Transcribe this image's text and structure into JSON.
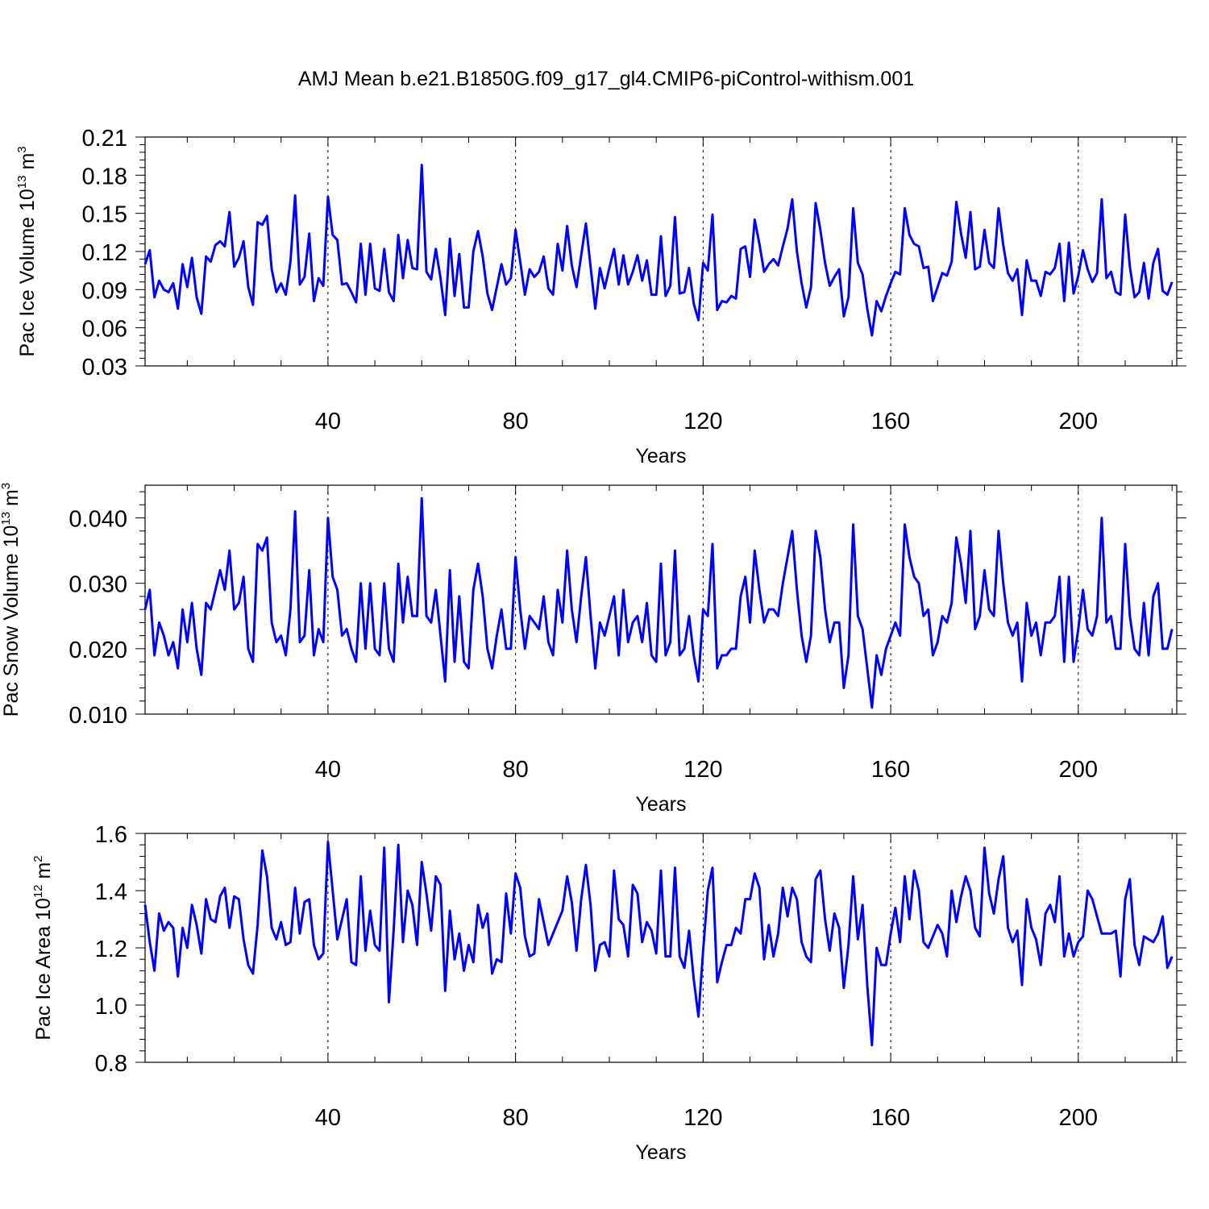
{
  "title": "AMJ Mean b.e21.B1850G.f09_g17_gl4.CMIP6-piControl-withism.001",
  "line_color": "#0000ff",
  "chart_data": [
    {
      "type": "line",
      "title": "AMJ Mean b.e21.B1850G.f09_g17_gl4.CMIP6-piControl-withism.001",
      "xlabel": "Years",
      "ylabel": "Pac Ice Volume 10",
      "ylabel_sup": "13",
      "ylabel_unit": " m",
      "ylabel_unit_sup": "3",
      "xlim": [
        1,
        221
      ],
      "ylim": [
        0.03,
        0.21
      ],
      "xticks": [
        40,
        80,
        120,
        160,
        200
      ],
      "xtick_labels": [
        "40",
        "80",
        "120",
        "160",
        "200"
      ],
      "yticks": [
        0.03,
        0.06,
        0.09,
        0.12,
        0.15,
        0.18,
        0.21
      ],
      "ytick_labels": [
        "0.03",
        "0.06",
        "0.09",
        "0.12",
        "0.15",
        "0.18",
        "0.21"
      ],
      "grid": "vertical dashed at major x ticks",
      "x_start": 1,
      "values": [
        0.11,
        0.121,
        0.084,
        0.097,
        0.09,
        0.088,
        0.095,
        0.075,
        0.11,
        0.092,
        0.115,
        0.084,
        0.071,
        0.116,
        0.112,
        0.125,
        0.128,
        0.124,
        0.151,
        0.108,
        0.115,
        0.128,
        0.092,
        0.078,
        0.143,
        0.141,
        0.148,
        0.106,
        0.088,
        0.095,
        0.086,
        0.112,
        0.164,
        0.094,
        0.1,
        0.134,
        0.081,
        0.099,
        0.093,
        0.163,
        0.133,
        0.129,
        0.094,
        0.095,
        0.088,
        0.08,
        0.126,
        0.086,
        0.126,
        0.091,
        0.089,
        0.122,
        0.088,
        0.081,
        0.133,
        0.099,
        0.129,
        0.107,
        0.106,
        0.188,
        0.104,
        0.098,
        0.122,
        0.099,
        0.07,
        0.13,
        0.085,
        0.118,
        0.076,
        0.076,
        0.12,
        0.136,
        0.116,
        0.087,
        0.074,
        0.092,
        0.11,
        0.094,
        0.099,
        0.137,
        0.112,
        0.086,
        0.106,
        0.1,
        0.104,
        0.116,
        0.091,
        0.086,
        0.126,
        0.105,
        0.14,
        0.109,
        0.092,
        0.117,
        0.142,
        0.108,
        0.075,
        0.107,
        0.091,
        0.107,
        0.122,
        0.094,
        0.117,
        0.094,
        0.104,
        0.117,
        0.097,
        0.113,
        0.086,
        0.086,
        0.132,
        0.085,
        0.093,
        0.147,
        0.087,
        0.088,
        0.107,
        0.079,
        0.066,
        0.111,
        0.105,
        0.149,
        0.074,
        0.081,
        0.08,
        0.085,
        0.083,
        0.122,
        0.124,
        0.1,
        0.145,
        0.126,
        0.104,
        0.11,
        0.114,
        0.109,
        0.124,
        0.138,
        0.161,
        0.12,
        0.095,
        0.076,
        0.092,
        0.158,
        0.137,
        0.111,
        0.093,
        0.1,
        0.106,
        0.069,
        0.084,
        0.154,
        0.111,
        0.102,
        0.075,
        0.054,
        0.081,
        0.073,
        0.085,
        0.095,
        0.104,
        0.102,
        0.154,
        0.133,
        0.126,
        0.124,
        0.107,
        0.108,
        0.081,
        0.092,
        0.103,
        0.101,
        0.112,
        0.159,
        0.134,
        0.115,
        0.151,
        0.106,
        0.108,
        0.137,
        0.111,
        0.107,
        0.154,
        0.125,
        0.103,
        0.097,
        0.106,
        0.07,
        0.113,
        0.097,
        0.097,
        0.085,
        0.104,
        0.102,
        0.107,
        0.126,
        0.081,
        0.127,
        0.087,
        0.101,
        0.121,
        0.106,
        0.096,
        0.103,
        0.161,
        0.099,
        0.104,
        0.088,
        0.086,
        0.149,
        0.108,
        0.084,
        0.088,
        0.111,
        0.083,
        0.111,
        0.122,
        0.089,
        0.086,
        0.096
      ]
    },
    {
      "type": "line",
      "xlabel": "Years",
      "ylabel": "Pac Snow Volume 10",
      "ylabel_sup": "13",
      "ylabel_unit": " m",
      "ylabel_unit_sup": "3",
      "xlim": [
        1,
        221
      ],
      "ylim": [
        0.01,
        0.045
      ],
      "xticks": [
        40,
        80,
        120,
        160,
        200
      ],
      "xtick_labels": [
        "40",
        "80",
        "120",
        "160",
        "200"
      ],
      "yticks": [
        0.01,
        0.02,
        0.03,
        0.04
      ],
      "ytick_labels": [
        "0.010",
        "0.020",
        "0.030",
        "0.040"
      ],
      "grid": "vertical dashed at major x ticks",
      "x_start": 1,
      "values": [
        0.026,
        0.029,
        0.019,
        0.024,
        0.022,
        0.019,
        0.021,
        0.017,
        0.026,
        0.021,
        0.027,
        0.02,
        0.016,
        0.027,
        0.026,
        0.029,
        0.032,
        0.029,
        0.035,
        0.026,
        0.027,
        0.031,
        0.02,
        0.018,
        0.036,
        0.035,
        0.037,
        0.024,
        0.021,
        0.022,
        0.019,
        0.026,
        0.041,
        0.021,
        0.022,
        0.032,
        0.019,
        0.023,
        0.021,
        0.04,
        0.031,
        0.029,
        0.022,
        0.023,
        0.02,
        0.018,
        0.03,
        0.02,
        0.03,
        0.02,
        0.019,
        0.03,
        0.02,
        0.018,
        0.033,
        0.024,
        0.031,
        0.025,
        0.025,
        0.043,
        0.025,
        0.024,
        0.029,
        0.022,
        0.015,
        0.032,
        0.018,
        0.028,
        0.018,
        0.017,
        0.029,
        0.033,
        0.028,
        0.02,
        0.017,
        0.022,
        0.026,
        0.02,
        0.02,
        0.034,
        0.026,
        0.02,
        0.025,
        0.024,
        0.023,
        0.028,
        0.021,
        0.019,
        0.029,
        0.024,
        0.035,
        0.026,
        0.021,
        0.028,
        0.034,
        0.025,
        0.017,
        0.024,
        0.022,
        0.025,
        0.028,
        0.019,
        0.029,
        0.021,
        0.024,
        0.025,
        0.021,
        0.027,
        0.019,
        0.018,
        0.033,
        0.019,
        0.021,
        0.035,
        0.019,
        0.02,
        0.025,
        0.019,
        0.015,
        0.026,
        0.025,
        0.036,
        0.017,
        0.019,
        0.019,
        0.02,
        0.02,
        0.028,
        0.031,
        0.024,
        0.035,
        0.029,
        0.024,
        0.026,
        0.026,
        0.025,
        0.03,
        0.034,
        0.038,
        0.029,
        0.022,
        0.018,
        0.022,
        0.038,
        0.034,
        0.026,
        0.021,
        0.024,
        0.024,
        0.014,
        0.019,
        0.039,
        0.025,
        0.023,
        0.017,
        0.011,
        0.019,
        0.016,
        0.02,
        0.022,
        0.024,
        0.022,
        0.039,
        0.034,
        0.031,
        0.03,
        0.025,
        0.026,
        0.019,
        0.021,
        0.025,
        0.024,
        0.027,
        0.037,
        0.033,
        0.027,
        0.038,
        0.023,
        0.025,
        0.032,
        0.026,
        0.025,
        0.038,
        0.03,
        0.024,
        0.022,
        0.024,
        0.015,
        0.027,
        0.022,
        0.024,
        0.019,
        0.024,
        0.024,
        0.025,
        0.031,
        0.018,
        0.031,
        0.018,
        0.023,
        0.029,
        0.023,
        0.022,
        0.025,
        0.04,
        0.024,
        0.025,
        0.02,
        0.02,
        0.036,
        0.025,
        0.02,
        0.019,
        0.027,
        0.019,
        0.028,
        0.03,
        0.02,
        0.02,
        0.023
      ]
    },
    {
      "type": "line",
      "xlabel": "Years",
      "ylabel": "Pac Ice Area 10",
      "ylabel_sup": "12",
      "ylabel_unit": " m",
      "ylabel_unit_sup": "2",
      "xlim": [
        1,
        221
      ],
      "ylim": [
        0.8,
        1.6
      ],
      "xticks": [
        40,
        80,
        120,
        160,
        200
      ],
      "xtick_labels": [
        "40",
        "80",
        "120",
        "160",
        "200"
      ],
      "yticks": [
        0.8,
        1.0,
        1.2,
        1.4,
        1.6
      ],
      "ytick_labels": [
        "0.8",
        "1.0",
        "1.2",
        "1.4",
        "1.6"
      ],
      "grid": "vertical dashed at major x ticks",
      "x_start": 1,
      "values": [
        1.35,
        1.22,
        1.12,
        1.32,
        1.26,
        1.29,
        1.27,
        1.1,
        1.27,
        1.2,
        1.35,
        1.28,
        1.18,
        1.37,
        1.3,
        1.29,
        1.38,
        1.41,
        1.27,
        1.38,
        1.37,
        1.23,
        1.14,
        1.11,
        1.28,
        1.54,
        1.45,
        1.27,
        1.23,
        1.29,
        1.21,
        1.22,
        1.41,
        1.25,
        1.36,
        1.37,
        1.21,
        1.16,
        1.18,
        1.57,
        1.4,
        1.23,
        1.3,
        1.37,
        1.15,
        1.14,
        1.45,
        1.19,
        1.33,
        1.21,
        1.19,
        1.55,
        1.01,
        1.26,
        1.56,
        1.22,
        1.4,
        1.35,
        1.21,
        1.5,
        1.39,
        1.26,
        1.45,
        1.42,
        1.05,
        1.33,
        1.16,
        1.25,
        1.12,
        1.21,
        1.15,
        1.35,
        1.27,
        1.32,
        1.11,
        1.16,
        1.15,
        1.39,
        1.25,
        1.46,
        1.41,
        1.24,
        1.17,
        1.18,
        1.37,
        1.29,
        1.21,
        1.25,
        1.29,
        1.33,
        1.45,
        1.36,
        1.19,
        1.37,
        1.49,
        1.35,
        1.12,
        1.21,
        1.22,
        1.17,
        1.47,
        1.3,
        1.28,
        1.17,
        1.42,
        1.39,
        1.22,
        1.29,
        1.26,
        1.18,
        1.47,
        1.17,
        1.17,
        1.48,
        1.17,
        1.13,
        1.26,
        1.09,
        0.96,
        1.19,
        1.4,
        1.48,
        1.08,
        1.15,
        1.21,
        1.21,
        1.27,
        1.25,
        1.37,
        1.37,
        1.46,
        1.41,
        1.16,
        1.28,
        1.17,
        1.25,
        1.41,
        1.31,
        1.41,
        1.37,
        1.22,
        1.17,
        1.15,
        1.44,
        1.47,
        1.3,
        1.19,
        1.32,
        1.27,
        1.06,
        1.21,
        1.45,
        1.23,
        1.35,
        1.07,
        0.86,
        1.2,
        1.14,
        1.14,
        1.25,
        1.34,
        1.22,
        1.45,
        1.3,
        1.47,
        1.4,
        1.22,
        1.2,
        1.24,
        1.28,
        1.25,
        1.17,
        1.4,
        1.29,
        1.38,
        1.45,
        1.4,
        1.27,
        1.24,
        1.55,
        1.39,
        1.32,
        1.44,
        1.52,
        1.27,
        1.22,
        1.26,
        1.07,
        1.37,
        1.27,
        1.23,
        1.14,
        1.32,
        1.35,
        1.29,
        1.45,
        1.17,
        1.25,
        1.17,
        1.22,
        1.24,
        1.4,
        1.37,
        1.31,
        1.25,
        1.25,
        1.25,
        1.26,
        1.1,
        1.37,
        1.44,
        1.21,
        1.14,
        1.24,
        1.23,
        1.22,
        1.25,
        1.31,
        1.13,
        1.17
      ]
    }
  ]
}
